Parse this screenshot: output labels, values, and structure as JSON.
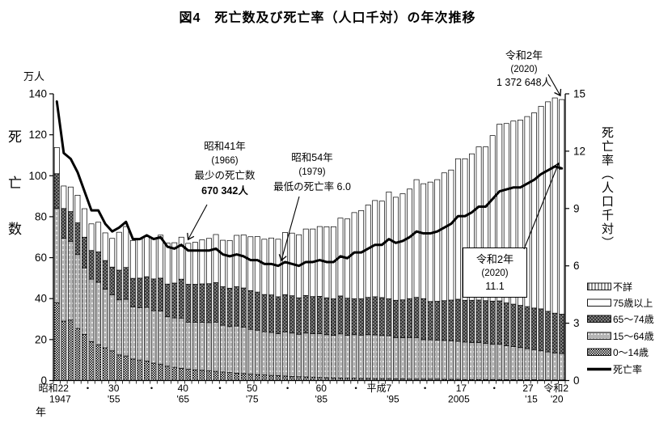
{
  "title": "図4　死亡数及び死亡率（人口千対）の年次推移",
  "axes": {
    "left_unit": "万人",
    "left_title": "死亡数",
    "left_ticks": [
      0,
      20,
      40,
      60,
      80,
      100,
      120,
      140
    ],
    "right_title": "死亡率（人口千対）",
    "right_ticks": [
      0,
      3,
      6,
      9,
      12,
      15
    ],
    "x_title": "年",
    "x_labels": [
      {
        "era": "昭和22",
        "west": "1947",
        "year": 1947,
        "dx_era": -4,
        "dx_west": 4
      },
      {
        "era": "・",
        "west": "",
        "year": 1951,
        "dx_era": 4,
        "dx_west": 0
      },
      {
        "era": "30",
        "west": "'55",
        "year": 1955,
        "dx_era": 2,
        "dx_west": 2
      },
      {
        "era": "・",
        "west": "",
        "year": 1960,
        "dx_era": 6,
        "dx_west": 0
      },
      {
        "era": "40",
        "west": "'65",
        "year": 1965,
        "dx_era": 2,
        "dx_west": 2
      },
      {
        "era": "・",
        "west": "",
        "year": 1970,
        "dx_era": 5,
        "dx_west": 0
      },
      {
        "era": "50",
        "west": "'75",
        "year": 1975,
        "dx_era": 2,
        "dx_west": 2
      },
      {
        "era": "・",
        "west": "",
        "year": 1980,
        "dx_era": 3,
        "dx_west": 0
      },
      {
        "era": "60",
        "west": "'85",
        "year": 1985,
        "dx_era": 2,
        "dx_west": 2
      },
      {
        "era": "・",
        "west": "",
        "year": 1990,
        "dx_era": 2,
        "dx_west": 0
      },
      {
        "era": "平成7",
        "west": "'95",
        "year": 1995,
        "dx_era": -12,
        "dx_west": 5
      },
      {
        "era": "・",
        "west": "",
        "year": 2000,
        "dx_era": 2,
        "dx_west": 0
      },
      {
        "era": "17",
        "west": "2005",
        "year": 2005,
        "dx_era": 4,
        "dx_west": 1
      },
      {
        "era": "・",
        "west": "",
        "year": 2010,
        "dx_era": 2,
        "dx_west": 0
      },
      {
        "era": "27",
        "west": "'15",
        "year": 2015,
        "dx_era": 1,
        "dx_west": 5
      },
      {
        "era": "令和2",
        "west": "'20",
        "year": 2020,
        "dx_era": -7,
        "dx_west": -6
      }
    ]
  },
  "legend": {
    "items": [
      {
        "label": "不詳",
        "swatch": "unknown"
      },
      {
        "label": "75歳以上",
        "swatch": "age75plus"
      },
      {
        "label": "65～74歳",
        "swatch": "age6574"
      },
      {
        "label": "15～64歳",
        "swatch": "age1564"
      },
      {
        "label": "0～14歳",
        "swatch": "age014"
      },
      {
        "label": "死亡率",
        "swatch": "rate_line"
      }
    ]
  },
  "annotations": {
    "min_deaths": {
      "lines": [
        "昭和41年",
        "(1966)",
        "最少の死亡数",
        "670 342人"
      ],
      "target_year": 1966
    },
    "min_rate": {
      "lines": [
        "昭和54年",
        "(1979)",
        "最低の死亡率 6.0"
      ],
      "target_year": 1979,
      "target_rate": 6.0
    },
    "latest_deaths": {
      "lines": [
        "令和2年",
        "(2020)",
        "1 372 648人"
      ],
      "target_year": 2020
    },
    "latest_rate": {
      "lines": [
        "令和2年",
        "(2020)",
        "11.1"
      ],
      "target_year": 2020,
      "target_rate": 11.1
    }
  },
  "chart_data": {
    "type": "bar+line",
    "title": "死亡数及び死亡率（人口千対）の年次推移",
    "bar_unit": "万人",
    "left_axis": {
      "label": "死亡数",
      "unit": "万人",
      "range": [
        0,
        140
      ],
      "ticks": [
        0,
        20,
        40,
        60,
        80,
        100,
        120,
        140
      ]
    },
    "right_axis": {
      "label": "死亡率（人口千対）",
      "range": [
        0,
        15
      ],
      "ticks": [
        0,
        3,
        6,
        9,
        12,
        15
      ]
    },
    "x": [
      1947,
      1948,
      1949,
      1950,
      1951,
      1952,
      1953,
      1954,
      1955,
      1956,
      1957,
      1958,
      1959,
      1960,
      1961,
      1962,
      1963,
      1964,
      1965,
      1966,
      1967,
      1968,
      1969,
      1970,
      1971,
      1972,
      1973,
      1974,
      1975,
      1976,
      1977,
      1978,
      1979,
      1980,
      1981,
      1982,
      1983,
      1984,
      1985,
      1986,
      1987,
      1988,
      1989,
      1990,
      1991,
      1992,
      1993,
      1994,
      1995,
      1996,
      1997,
      1998,
      1999,
      2000,
      2001,
      2002,
      2003,
      2004,
      2005,
      2006,
      2007,
      2008,
      2009,
      2010,
      2011,
      2012,
      2013,
      2014,
      2015,
      2016,
      2017,
      2018,
      2019,
      2020
    ],
    "series": [
      {
        "name": "0～14歳",
        "swatch": "age014",
        "values": [
          38.0,
          29.0,
          29.5,
          25.5,
          22.5,
          19.0,
          17.5,
          16.0,
          14.5,
          12.5,
          12.0,
          10.5,
          10.0,
          9.5,
          8.5,
          8.0,
          7.0,
          6.5,
          6.0,
          5.5,
          5.2,
          5.0,
          4.7,
          4.5,
          4.2,
          3.9,
          3.6,
          3.4,
          3.1,
          2.9,
          2.7,
          2.5,
          2.4,
          2.2,
          2.0,
          1.9,
          1.8,
          1.7,
          1.5,
          1.4,
          1.3,
          1.2,
          1.1,
          1.1,
          1.0,
          1.0,
          0.9,
          0.9,
          0.9,
          0.8,
          0.8,
          0.7,
          0.7,
          0.7,
          0.7,
          0.7,
          0.6,
          0.6,
          0.6,
          0.5,
          0.5,
          0.5,
          0.5,
          0.5,
          0.5,
          0.4,
          0.4,
          0.4,
          0.4,
          0.4,
          0.3,
          0.3,
          0.3,
          0.3
        ]
      },
      {
        "name": "15～64歳",
        "swatch": "age1564",
        "values": [
          46.0,
          40.5,
          38.5,
          36.0,
          32.5,
          30.5,
          30.5,
          28.6,
          27.4,
          26.9,
          27.7,
          25.4,
          25.5,
          26.2,
          25.6,
          26.0,
          24.1,
          24.1,
          24.5,
          23.0,
          23.2,
          23.4,
          23.6,
          24.0,
          22.8,
          22.4,
          23.0,
          22.6,
          21.9,
          21.7,
          21.1,
          21.0,
          20.5,
          21.5,
          21.2,
          20.7,
          21.4,
          21.2,
          21.4,
          21.0,
          20.8,
          21.6,
          21.0,
          21.3,
          21.2,
          21.4,
          21.4,
          21.1,
          21.0,
          20.2,
          20.1,
          20.3,
          20.3,
          19.3,
          19.2,
          19.0,
          19.0,
          18.8,
          18.5,
          18.3,
          18.1,
          18.0,
          17.6,
          17.3,
          17.2,
          16.6,
          16.2,
          15.7,
          15.2,
          14.7,
          14.2,
          13.7,
          13.2,
          12.9
        ]
      },
      {
        "name": "65～74歳",
        "swatch": "age6574",
        "values": [
          17.0,
          14.5,
          14.5,
          15.5,
          15.0,
          14.0,
          14.8,
          14.0,
          13.5,
          14.5,
          15.5,
          14.0,
          14.5,
          15.0,
          15.5,
          16.0,
          16.0,
          17.0,
          19.0,
          18.5,
          18.6,
          18.8,
          19.0,
          19.3,
          18.8,
          18.8,
          19.2,
          19.2,
          18.9,
          18.6,
          18.2,
          18.3,
          18.0,
          18.2,
          18.2,
          17.8,
          18.3,
          18.1,
          18.2,
          18.0,
          17.8,
          18.5,
          18.1,
          17.5,
          17.7,
          18.2,
          18.6,
          18.5,
          18.0,
          18.2,
          18.5,
          19.0,
          19.6,
          20.0,
          18.7,
          19.0,
          19.4,
          19.9,
          20.6,
          20.4,
          20.6,
          20.8,
          20.9,
          21.0,
          21.2,
          20.9,
          20.7,
          20.6,
          20.5,
          20.3,
          20.5,
          19.8,
          19.4,
          19.2
        ]
      },
      {
        "name": "75歳以上",
        "swatch": "age75plus",
        "values": [
          12.8,
          11.0,
          12.0,
          13.5,
          13.9,
          13.0,
          14.5,
          13.5,
          14.0,
          18.5,
          20.0,
          18.5,
          19.0,
          20.0,
          20.0,
          21.0,
          20.0,
          19.7,
          20.5,
          20.0,
          20.5,
          21.5,
          22.1,
          23.5,
          22.7,
          23.3,
          25.1,
          25.9,
          26.3,
          27.1,
          27.0,
          27.8,
          28.1,
          30.4,
          30.6,
          30.8,
          32.5,
          33.0,
          34.1,
          34.7,
          35.2,
          38.0,
          38.7,
          42.1,
          43.1,
          45.1,
          47.0,
          47.1,
          52.2,
          50.3,
          51.8,
          53.5,
          57.5,
          56.1,
          58.3,
          59.4,
          62.4,
          63.5,
          68.6,
          69.1,
          71.5,
          74.8,
          75.1,
          80.8,
          86.3,
          87.6,
          89.4,
          90.5,
          92.8,
          95.3,
          98.9,
          102.3,
          105.1,
          104.8
        ]
      },
      {
        "name": "不詳",
        "swatch": "unknown",
        "values": [
          0,
          0,
          0,
          0,
          0,
          0,
          0,
          0,
          0,
          0,
          0,
          0,
          0,
          0,
          0,
          0,
          0,
          0,
          0,
          0,
          0,
          0,
          0,
          0,
          0,
          0,
          0,
          0,
          0,
          0,
          0,
          0,
          0,
          0,
          0,
          0,
          0,
          0,
          0,
          0,
          0,
          0,
          0,
          0,
          0,
          0,
          0,
          0,
          0.1,
          0.1,
          0.1,
          0.1,
          0.1,
          0.1,
          0.1,
          0.1,
          0.1,
          0.1,
          0.1,
          0.1,
          0.1,
          0.1,
          0.1,
          0.1,
          0.1,
          0.1,
          0.1,
          0.1,
          0.1,
          0.1,
          0.1,
          0.1,
          0.1,
          0.1
        ]
      }
    ],
    "line_series": {
      "name": "死亡率",
      "axis": "right",
      "values": [
        14.6,
        11.9,
        11.6,
        10.9,
        9.9,
        8.9,
        8.9,
        8.2,
        7.8,
        8.0,
        8.3,
        7.4,
        7.4,
        7.6,
        7.4,
        7.5,
        7.0,
        6.9,
        7.1,
        6.8,
        6.8,
        6.8,
        6.8,
        6.9,
        6.6,
        6.5,
        6.6,
        6.5,
        6.3,
        6.3,
        6.1,
        6.1,
        6.0,
        6.2,
        6.1,
        6.0,
        6.2,
        6.2,
        6.3,
        6.2,
        6.2,
        6.5,
        6.4,
        6.7,
        6.7,
        6.9,
        7.1,
        7.1,
        7.4,
        7.2,
        7.3,
        7.5,
        7.8,
        7.7,
        7.7,
        7.8,
        8.0,
        8.2,
        8.6,
        8.6,
        8.8,
        9.1,
        9.1,
        9.5,
        9.9,
        10.0,
        10.1,
        10.1,
        10.3,
        10.5,
        10.8,
        11.0,
        11.2,
        11.1
      ]
    }
  }
}
